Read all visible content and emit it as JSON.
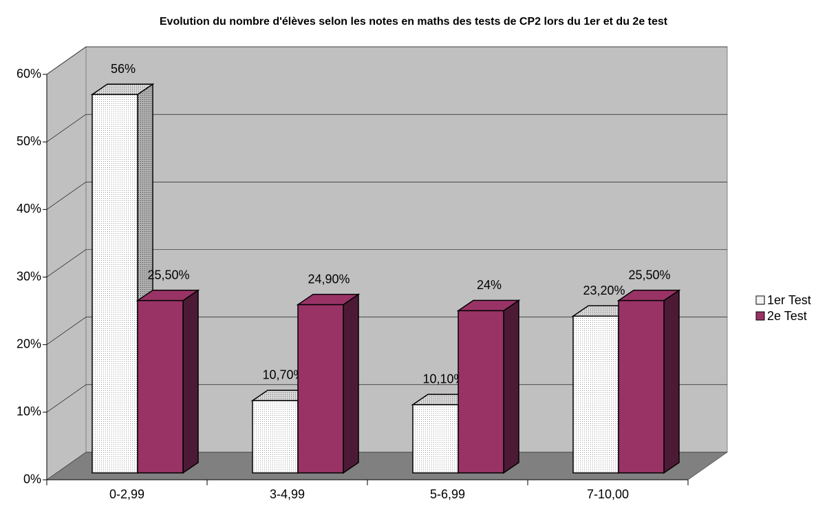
{
  "chart_data": {
    "type": "bar3d",
    "title": "Evolution du nombre d'élèves selon les notes en maths des tests de CP2 lors du 1er et du 2e test",
    "categories": [
      "0-2,99",
      "3-4,99",
      "5-6,99",
      "7-10,00"
    ],
    "series": [
      {
        "name": "1er Test",
        "color": "#ffffff",
        "values": [
          56,
          10.7,
          10.1,
          23.2
        ],
        "value_labels": [
          "56%",
          "10,70%",
          "10,10%",
          "23,20%"
        ]
      },
      {
        "name": "2e Test",
        "color": "#993366",
        "values": [
          25.5,
          24.9,
          24,
          25.5
        ],
        "value_labels": [
          "25,50%",
          "24,90%",
          "24%",
          "25,50%"
        ]
      }
    ],
    "ylim": [
      0,
      60
    ],
    "yticks": [
      {
        "value": 0,
        "label": "0%"
      },
      {
        "value": 10,
        "label": "10%"
      },
      {
        "value": 20,
        "label": "20%"
      },
      {
        "value": 30,
        "label": "30%"
      },
      {
        "value": 40,
        "label": "40%"
      },
      {
        "value": 50,
        "label": "50%"
      },
      {
        "value": 60,
        "label": "60%"
      }
    ],
    "grid": true,
    "legend": "right"
  }
}
